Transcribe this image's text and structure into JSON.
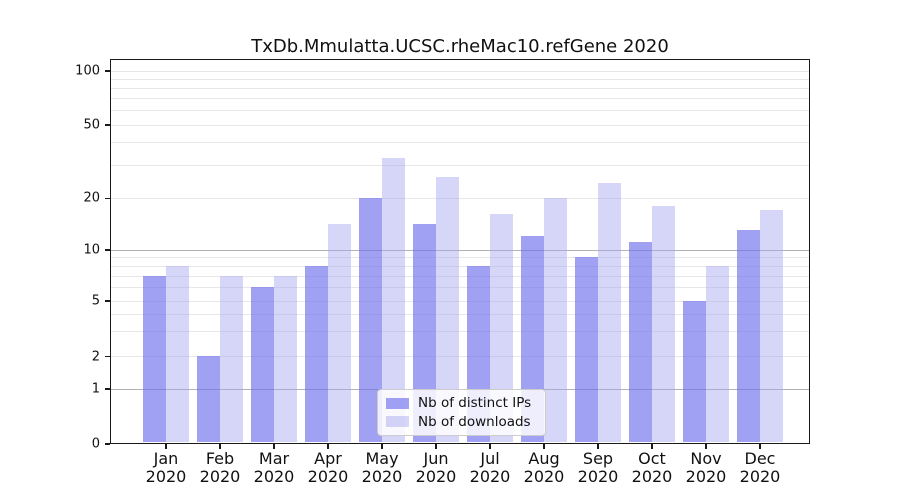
{
  "title": "TxDb.Mmulatta.UCSC.rheMac10.refGene 2020",
  "chart_data": {
    "type": "bar",
    "title": "TxDb.Mmulatta.UCSC.rheMac10.refGene 2020",
    "xlabel": "",
    "ylabel": "",
    "months": [
      "Jan",
      "Feb",
      "Mar",
      "Apr",
      "May",
      "Jun",
      "Jul",
      "Aug",
      "Sep",
      "Oct",
      "Nov",
      "Dec"
    ],
    "year": "2020",
    "categories": [
      "Jan 2020",
      "Feb 2020",
      "Mar 2020",
      "Apr 2020",
      "May 2020",
      "Jun 2020",
      "Jul 2020",
      "Aug 2020",
      "Sep 2020",
      "Oct 2020",
      "Nov 2020",
      "Dec 2020"
    ],
    "series": [
      {
        "name": "Nb of distinct IPs",
        "values": [
          7,
          2,
          6,
          8,
          20,
          14,
          8,
          12,
          9,
          11,
          5,
          13
        ],
        "color": "rgba(110,110,238,0.65)",
        "approx_hex": "#a1a1f0"
      },
      {
        "name": "Nb of downloads",
        "values": [
          8,
          7,
          7,
          14,
          33,
          26,
          16,
          20,
          24,
          18,
          8,
          17
        ],
        "color": "rgba(165,165,240,0.45)",
        "approx_hex": "#d8d8f6"
      }
    ],
    "y_ticks": [
      0,
      1,
      2,
      5,
      10,
      20,
      50,
      100
    ],
    "y_tick_labels": [
      "0",
      "1",
      "2",
      "5",
      "10",
      "20",
      "50",
      "100"
    ],
    "y_scale": "log-like (0,1,2,5,10,20,50,100)",
    "ylim": [
      0,
      120
    ],
    "grid": "horizontal",
    "gridline_values": [
      1,
      2,
      3,
      4,
      5,
      6,
      7,
      8,
      9,
      10,
      20,
      30,
      40,
      50,
      60,
      70,
      80,
      90,
      100
    ],
    "gridline_major_values": [
      1,
      10
    ],
    "legend_position": "inside-bottom-center"
  },
  "legend": {
    "items": [
      {
        "label": "Nb of distinct IPs"
      },
      {
        "label": "Nb of downloads"
      }
    ]
  },
  "colors": {
    "background": "#ffffff",
    "axis": "#1a1a1a",
    "grid_minor": "#e7e7e7",
    "grid_major": "#b3b3b3",
    "bar_distinct_ips": "#a1a1f0",
    "bar_downloads": "#d8d8f6",
    "text": "#111111"
  }
}
